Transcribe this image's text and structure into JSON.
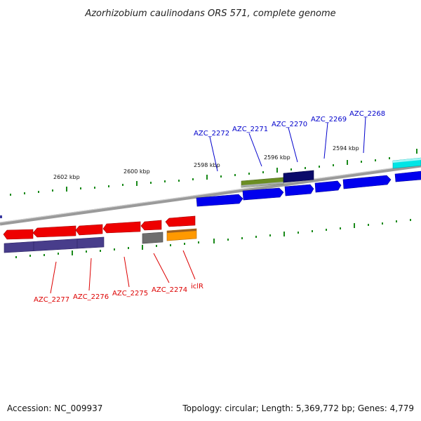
{
  "title": "Azorhizobium caulinodans ORS 571, complete genome",
  "footer": {
    "accession": "Accession: NC_009937",
    "summary": "Topology: circular; Length: 5,369,772 bp; Genes: 4,779"
  },
  "scale_labels": [
    "2602 kbp",
    "2600 kbp",
    "2598 kbp",
    "2596 kbp",
    "2594 kbp"
  ],
  "colors": {
    "label_forward": "#0000cc",
    "label_reverse": "#dd0000",
    "backbone": "#808080",
    "tick": "#1a8a1a"
  },
  "forward_labels": [
    "AZC_2272",
    "AZC_2271",
    "AZC_2270",
    "AZC_2269",
    "AZC_2268"
  ],
  "reverse_labels": [
    "AZC_2277",
    "AZC_2276",
    "AZC_2275",
    "AZC_2274",
    "iclR"
  ]
}
